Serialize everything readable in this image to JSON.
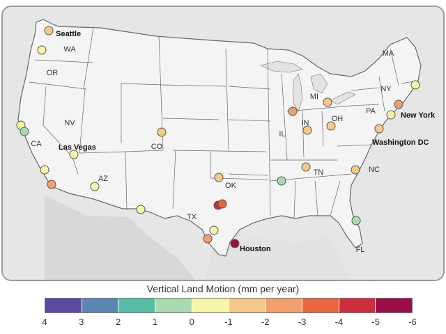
{
  "legend": {
    "title": "Vertical Land Motion (mm per year)",
    "ticks": [
      "4",
      "3",
      "2",
      "1",
      "0",
      "-1",
      "-2",
      "-3",
      "-4",
      "-5",
      "-6"
    ],
    "bins": [
      {
        "color": "#5b4aa0"
      },
      {
        "color": "#5b86b1"
      },
      {
        "color": "#56bca7"
      },
      {
        "color": "#a8dcb0"
      },
      {
        "color": "#f7f5a8"
      },
      {
        "color": "#f6c88b"
      },
      {
        "color": "#f39f6b"
      },
      {
        "color": "#e8663f"
      },
      {
        "color": "#cb2e3d"
      },
      {
        "color": "#9a0d47"
      }
    ]
  },
  "map": {
    "background_color": "#eeeeee",
    "land_color": "#f4f4f4",
    "water_color": "#dcdcdc",
    "border_color": "#666666",
    "state_labels": [
      "WA",
      "OR",
      "CA",
      "NV",
      "AZ",
      "CO",
      "TX",
      "OK",
      "IL",
      "IN",
      "OH",
      "MI",
      "TN",
      "NC",
      "PA",
      "NY",
      "MA",
      "FL"
    ],
    "city_labels": [
      "Seattle",
      "Las Vegas",
      "Houston",
      "New York",
      "Washington DC"
    ]
  },
  "sites": [
    {
      "location": "Seattle",
      "vlm_mm_per_year": -1.5
    },
    {
      "location": "Washington coast",
      "vlm_mm_per_year": -0.5
    },
    {
      "location": "Northern California 1",
      "vlm_mm_per_year": -0.5
    },
    {
      "location": "Northern California 2",
      "vlm_mm_per_year": 0.5
    },
    {
      "location": "Las Vegas",
      "vlm_mm_per_year": -0.5
    },
    {
      "location": "Los Angeles",
      "vlm_mm_per_year": -0.5
    },
    {
      "location": "San Diego",
      "vlm_mm_per_year": -2.5
    },
    {
      "location": "Arizona",
      "vlm_mm_per_year": -0.5
    },
    {
      "location": "West Texas",
      "vlm_mm_per_year": -0.5
    },
    {
      "location": "Colorado",
      "vlm_mm_per_year": -1.5
    },
    {
      "location": "Oklahoma City",
      "vlm_mm_per_year": -1.5
    },
    {
      "location": "Dallas 1",
      "vlm_mm_per_year": -4.5
    },
    {
      "location": "Dallas 2",
      "vlm_mm_per_year": -3.5
    },
    {
      "location": "Central Texas",
      "vlm_mm_per_year": -0.5
    },
    {
      "location": "South Texas",
      "vlm_mm_per_year": -2.5
    },
    {
      "location": "Houston",
      "vlm_mm_per_year": -5.5
    },
    {
      "location": "Memphis",
      "vlm_mm_per_year": 0.5
    },
    {
      "location": "Chicago",
      "vlm_mm_per_year": -2.5
    },
    {
      "location": "Indiana",
      "vlm_mm_per_year": -1.5
    },
    {
      "location": "Michigan",
      "vlm_mm_per_year": -1.5
    },
    {
      "location": "Ohio",
      "vlm_mm_per_year": -1.5
    },
    {
      "location": "Tennessee",
      "vlm_mm_per_year": -1.5
    },
    {
      "location": "North Carolina",
      "vlm_mm_per_year": -1.5
    },
    {
      "location": "Jacksonville",
      "vlm_mm_per_year": 0.5
    },
    {
      "location": "Washington DC",
      "vlm_mm_per_year": -1.5
    },
    {
      "location": "New Jersey",
      "vlm_mm_per_year": -0.5
    },
    {
      "location": "New York",
      "vlm_mm_per_year": -2.5
    },
    {
      "location": "Boston",
      "vlm_mm_per_year": -0.5
    }
  ]
}
